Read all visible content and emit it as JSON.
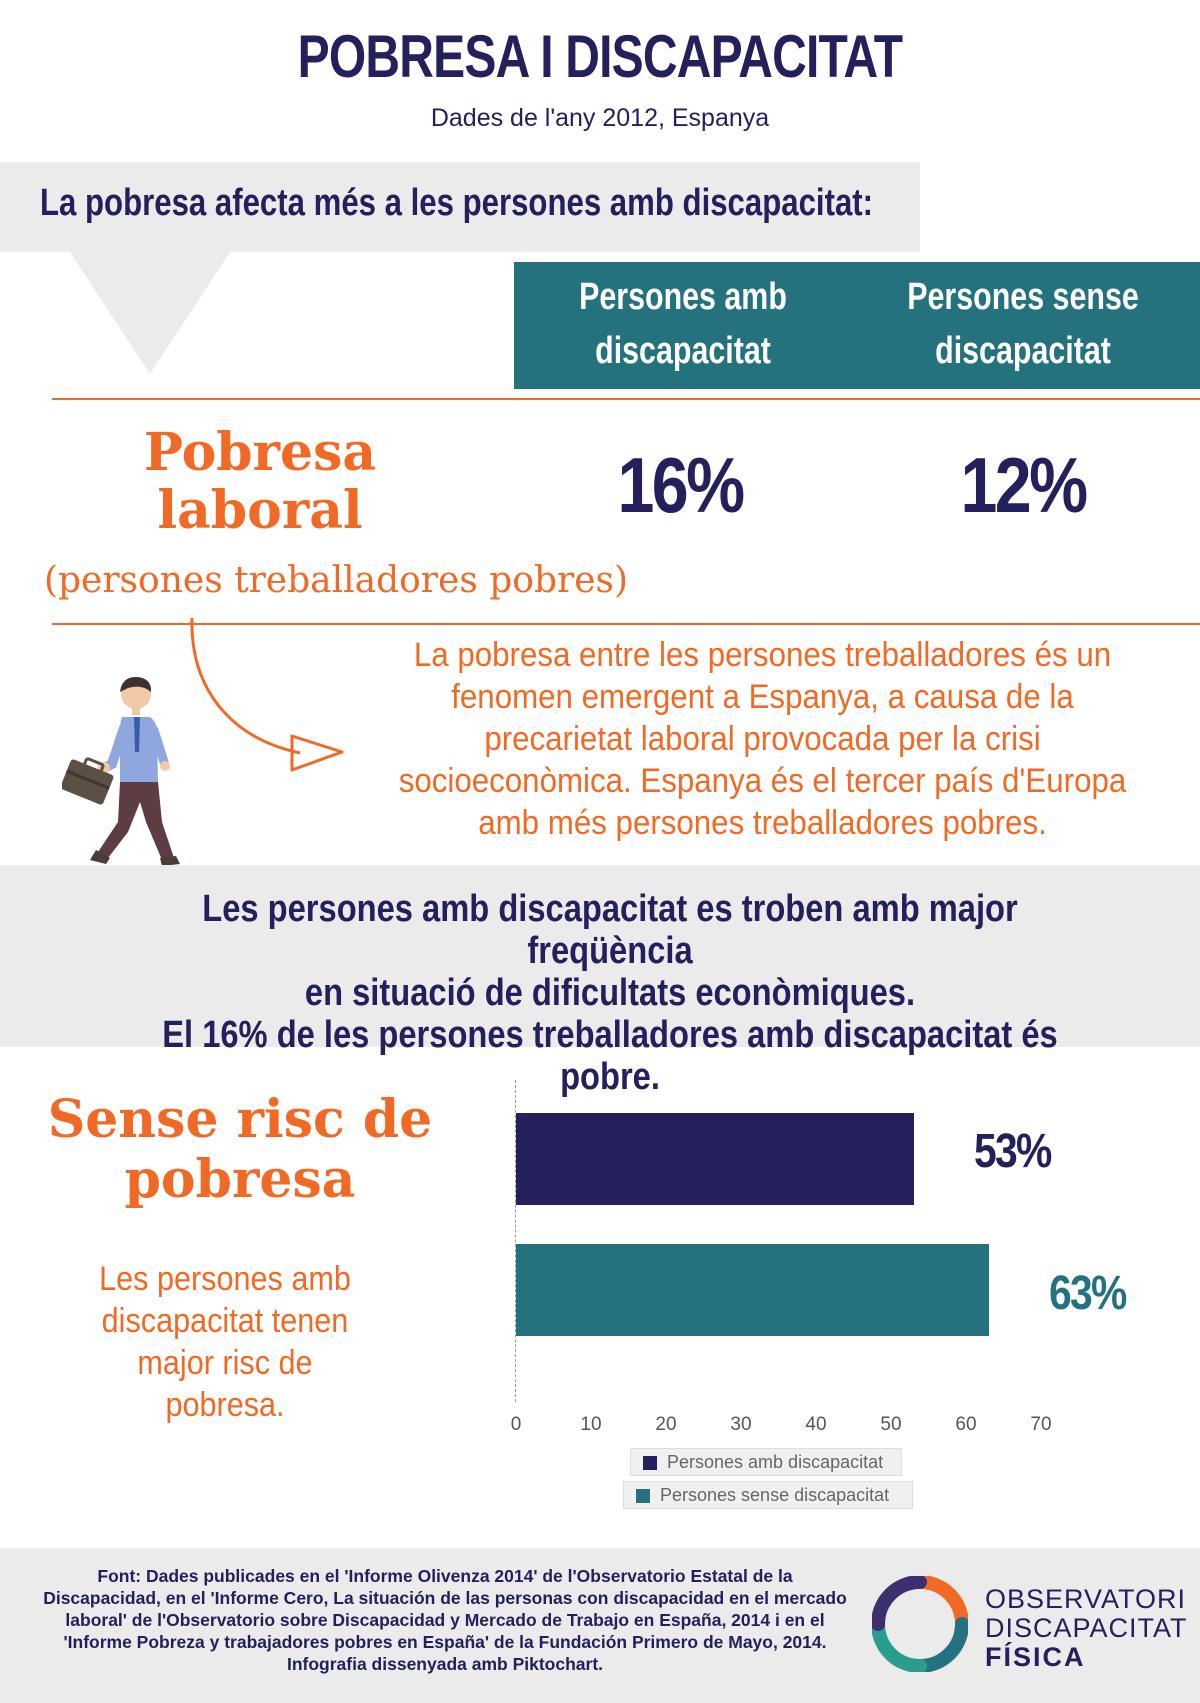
{
  "header": {
    "title": "POBRESA I DISCAPACITAT",
    "subtitle": "Dades de l'any 2012, Espanya"
  },
  "intro": {
    "text": "La pobresa afecta més a les persones amb discapacitat:"
  },
  "table": {
    "col1_line1": "Persones amb",
    "col1_line2": "discapacitat",
    "col2_line1": "Persones sense",
    "col2_line2": "discapacitat",
    "row_label_line1": "Pobresa",
    "row_label_line2": "laboral",
    "row_sublabel": "(persones treballadores pobres)",
    "value_with": "16%",
    "value_without": "12%"
  },
  "explanation": {
    "line1": "La pobresa entre les persones treballadores és un",
    "line2": "fenomen emergent a Espanya, a causa de la",
    "line3": "precarietat laboral provocada per la crisi",
    "line4": "socioeconòmica. Espanya és el tercer país d'Europa",
    "line5": "amb més persones treballadores pobres."
  },
  "highlight": {
    "line1": "Les persones amb discapacitat es troben amb major freqüència",
    "line2": "en situació de dificultats econòmiques.",
    "line3": "El 16% de les persones treballadores amb discapacitat és pobre."
  },
  "risk_section": {
    "title_line1": "Sense risc de",
    "title_line2": "pobresa",
    "para_line1": "Les persones amb",
    "para_line2": "discapacitat tenen",
    "para_line3": "major risc de",
    "para_line4": "pobresa."
  },
  "chart_data": {
    "type": "bar",
    "orientation": "horizontal",
    "categories": [
      "Persones amb discapacitat",
      "Persones sense discapacitat"
    ],
    "values": [
      53,
      63
    ],
    "value_labels": [
      "53%",
      "63%"
    ],
    "colors": [
      "#24205b",
      "#23727e"
    ],
    "xlim": [
      0,
      70
    ],
    "xticks": [
      "0",
      "10",
      "20",
      "30",
      "40",
      "50",
      "60",
      "70"
    ],
    "legend": [
      "Persones amb discapacitat",
      "Persones sense discapacitat"
    ],
    "legend_position": "bottom",
    "grid": false
  },
  "footer": {
    "line1": "Font: Dades publicades en el 'Informe Olivenza 2014' de l'Observatorio Estatal de la",
    "line2": "Discapacidad, en el 'Informe Cero, La situación de las personas con discapacidad en el mercado",
    "line3": "laboral' de l'Observatorio sobre Discapacidad y Mercado de Trabajo en España, 2014 i en el",
    "line4": "'Informe Pobreza y trabajadores pobres en España' de la Fundación Primero de Mayo, 2014.",
    "line5": "Infografia dissenyada amb Piktochart."
  },
  "logo": {
    "line1": "OBSERVATORI",
    "line2": "DISCAPACITAT",
    "line3": "FÍSICA"
  },
  "colors": {
    "navy": "#24205b",
    "teal": "#23727e",
    "orange": "#f06a25",
    "grey_band": "#ebebeb"
  }
}
